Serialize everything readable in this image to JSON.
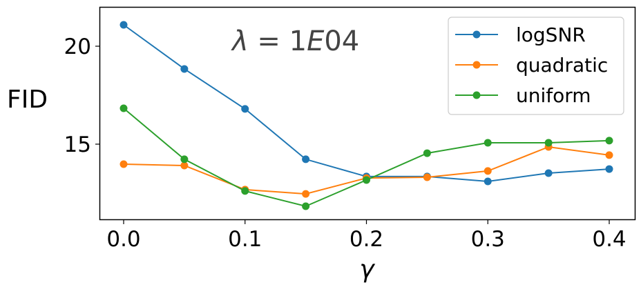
{
  "chart_data": {
    "type": "line",
    "title": "",
    "annotation": "λ = 1E04",
    "annotation_parts": {
      "symbol": "λ",
      "eq": " = 1",
      "exp_letter": "E",
      "exp": "04"
    },
    "xlabel": "γ",
    "ylabel": "FID",
    "x": [
      0.0,
      0.05,
      0.1,
      0.15,
      0.2,
      0.25,
      0.3,
      0.35,
      0.4
    ],
    "xticks": [
      "0.0",
      "0.1",
      "0.2",
      "0.3",
      "0.4"
    ],
    "xtick_values": [
      0.0,
      0.1,
      0.2,
      0.3,
      0.4
    ],
    "yticks": [
      "15",
      "20"
    ],
    "ytick_values": [
      15,
      20
    ],
    "xlim": [
      -0.02,
      0.42
    ],
    "ylim": [
      11.2,
      22.1
    ],
    "grid": false,
    "legend_position": "upper right",
    "series": [
      {
        "name": "logSNR",
        "color": "#1f77b4",
        "values": [
          21.09,
          18.84,
          16.8,
          14.23,
          13.35,
          13.35,
          13.1,
          13.52,
          13.73
        ]
      },
      {
        "name": "quadratic",
        "color": "#ff7f0e",
        "values": [
          13.98,
          13.91,
          12.68,
          12.46,
          13.27,
          13.31,
          13.63,
          14.86,
          14.44
        ]
      },
      {
        "name": "uniform",
        "color": "#2ca02c",
        "values": [
          16.83,
          14.23,
          12.61,
          11.83,
          13.17,
          14.54,
          15.07,
          15.07,
          15.18
        ]
      }
    ]
  }
}
